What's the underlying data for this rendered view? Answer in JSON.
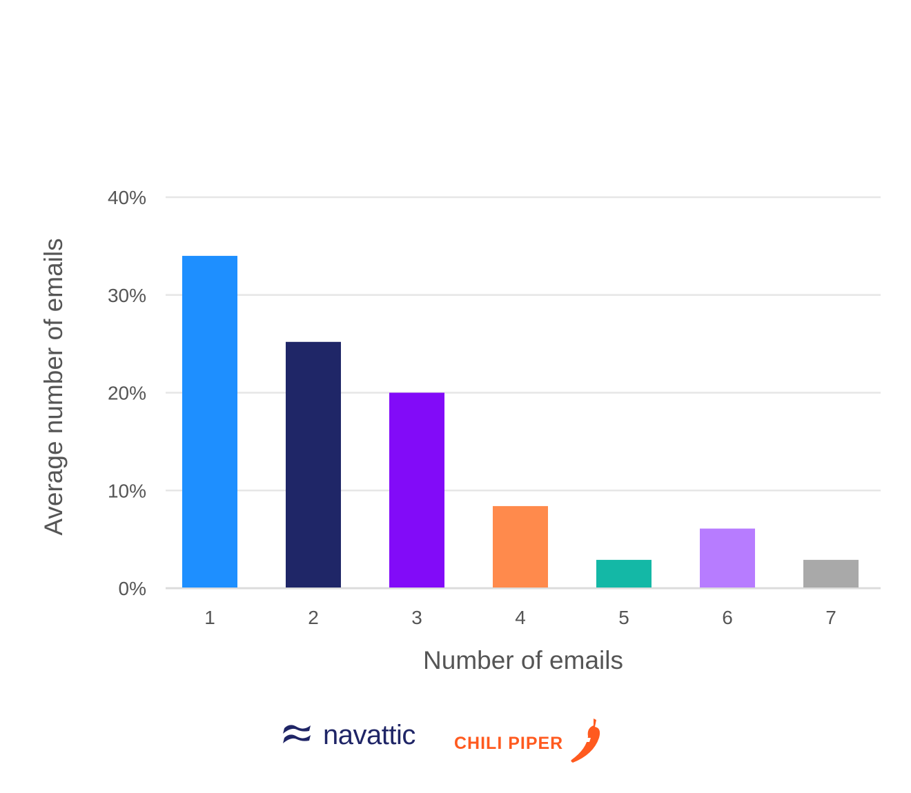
{
  "chart_data": {
    "type": "bar",
    "categories": [
      "1",
      "2",
      "3",
      "4",
      "5",
      "6",
      "7"
    ],
    "values": [
      34,
      25.2,
      20,
      8.4,
      2.9,
      6.1,
      2.9
    ],
    "colors": [
      "#1e8fff",
      "#1f2667",
      "#820bf8",
      "#ff8a4c",
      "#14b8a6",
      "#b77cff",
      "#a9a9a9"
    ],
    "yticks": [
      0,
      10,
      20,
      30,
      40
    ],
    "ytick_labels": [
      "0%",
      "10%",
      "20%",
      "30%",
      "40%"
    ],
    "ylim": [
      0,
      40
    ],
    "xlabel": "Number of emails",
    "ylabel": "Average number of emails",
    "grid": true
  },
  "logos": {
    "navattic": {
      "text": "navattic",
      "icon": "navattic-wave-icon",
      "color": "#1f2566"
    },
    "chili_piper": {
      "text": "CHILI PIPER",
      "icon": "chili-pepper-icon",
      "color": "#ff5a1f"
    }
  }
}
